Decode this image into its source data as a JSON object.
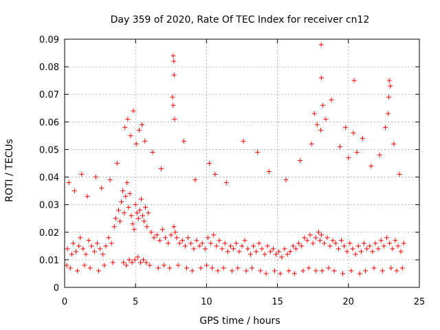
{
  "chart_data": {
    "type": "scatter",
    "title": "Day 359 of 2020, Rate Of TEC Index for receiver cn12",
    "xlabel": "GPS time / hours",
    "ylabel": "ROTI / TECUs",
    "xlim": [
      0,
      25
    ],
    "ylim": [
      0,
      0.09
    ],
    "xticks": [
      "0",
      "5",
      "10",
      "15",
      "20",
      "25"
    ],
    "yticks": [
      "0",
      "0.01",
      "0.02",
      "0.03",
      "0.04",
      "0.05",
      "0.06",
      "0.07",
      "0.08",
      "0.09"
    ],
    "grid": true,
    "marker_color": "#ff0000",
    "marker": "plus",
    "series": [
      {
        "x": [
          0.2,
          0.5,
          0.6,
          0.8,
          1.0,
          1.1,
          1.3,
          1.5,
          1.7,
          1.9,
          2.1,
          2.3,
          2.5,
          2.7,
          2.9,
          3.1,
          3.3,
          3.5,
          3.6,
          3.8,
          3.9,
          4.0,
          4.1,
          4.2,
          4.3,
          4.4,
          4.5,
          4.6,
          4.7,
          4.8,
          4.9,
          5.0,
          5.1,
          5.2,
          5.3,
          5.4,
          5.5,
          5.6,
          5.7,
          5.8,
          5.9,
          6.1,
          6.3,
          6.5,
          6.7,
          6.9,
          7.1,
          7.3,
          7.5,
          7.7,
          7.8,
          7.9,
          8.1,
          8.3,
          8.5,
          8.7,
          8.9,
          9.1,
          9.3,
          9.5,
          9.7,
          9.9,
          10.1,
          10.3,
          10.5,
          10.7,
          10.9,
          11.1,
          11.3,
          11.5,
          11.7,
          11.9,
          12.1,
          12.3,
          12.5,
          12.7,
          12.9,
          13.1,
          13.3,
          13.5,
          13.7,
          13.9,
          14.1,
          14.3,
          14.5,
          14.7,
          14.9,
          15.1,
          15.3,
          15.5,
          15.7,
          15.9,
          16.1,
          16.3,
          16.5,
          16.7,
          16.9,
          17.1,
          17.3,
          17.5,
          17.7,
          17.9,
          18.0,
          18.1,
          18.3,
          18.5,
          18.7,
          18.9,
          19.1,
          19.3,
          19.5,
          19.7,
          19.9,
          20.1,
          20.3,
          20.5,
          20.7,
          20.9,
          21.1,
          21.3,
          21.5,
          21.7,
          21.9,
          22.1,
          22.3,
          22.5,
          22.7,
          22.9,
          23.1,
          23.3,
          23.5,
          23.7,
          23.9,
          0.3,
          0.7,
          1.2,
          1.6,
          2.2,
          2.6,
          3.2,
          3.7,
          4.25,
          4.45,
          4.65,
          4.85,
          5.05,
          5.25,
          5.45,
          5.65,
          6.2,
          6.8,
          7.6,
          7.65,
          7.75,
          8.4,
          9.2,
          10.2,
          10.6,
          11.4,
          12.6,
          13.6,
          14.4,
          15.6,
          16.6,
          17.4,
          17.6,
          17.8,
          18.05,
          18.2,
          18.4,
          18.8,
          19.4,
          19.8,
          20.0,
          20.35,
          20.6,
          21.0,
          21.6,
          22.2,
          22.6,
          22.8,
          22.85,
          22.95,
          23.2,
          23.6,
          0.15,
          0.4,
          0.9,
          1.4,
          1.8,
          2.4,
          2.8,
          3.4,
          4.15,
          4.35,
          4.55,
          4.75,
          4.95,
          5.15,
          5.35,
          5.55,
          5.75,
          6.0,
          6.6,
          7.0,
          7.4,
          8.0,
          8.6,
          9.0,
          9.6,
          10.0,
          10.4,
          10.8,
          11.2,
          11.8,
          12.2,
          12.8,
          13.2,
          13.8,
          14.2,
          14.8,
          15.2,
          15.8,
          16.2,
          16.8,
          17.2,
          17.7,
          18.15,
          18.6,
          19.0,
          19.6,
          20.2,
          20.8,
          21.2,
          21.8,
          22.4,
          23.0,
          23.4,
          23.8,
          7.65,
          7.7,
          7.72,
          18.08,
          18.1,
          20.4,
          22.88
        ],
        "y": [
          0.014,
          0.012,
          0.016,
          0.013,
          0.015,
          0.018,
          0.014,
          0.012,
          0.017,
          0.015,
          0.013,
          0.016,
          0.014,
          0.012,
          0.015,
          0.018,
          0.016,
          0.022,
          0.025,
          0.028,
          0.024,
          0.031,
          0.035,
          0.027,
          0.033,
          0.038,
          0.029,
          0.034,
          0.026,
          0.023,
          0.021,
          0.03,
          0.027,
          0.025,
          0.028,
          0.032,
          0.026,
          0.024,
          0.029,
          0.022,
          0.027,
          0.02,
          0.018,
          0.019,
          0.017,
          0.021,
          0.018,
          0.016,
          0.019,
          0.022,
          0.02,
          0.018,
          0.016,
          0.017,
          0.015,
          0.018,
          0.016,
          0.014,
          0.017,
          0.015,
          0.016,
          0.014,
          0.018,
          0.016,
          0.019,
          0.015,
          0.017,
          0.014,
          0.016,
          0.013,
          0.015,
          0.014,
          0.016,
          0.013,
          0.015,
          0.017,
          0.014,
          0.012,
          0.015,
          0.013,
          0.016,
          0.014,
          0.012,
          0.015,
          0.013,
          0.014,
          0.012,
          0.013,
          0.011,
          0.014,
          0.012,
          0.013,
          0.015,
          0.014,
          0.016,
          0.015,
          0.018,
          0.017,
          0.019,
          0.016,
          0.018,
          0.02,
          0.017,
          0.019,
          0.016,
          0.018,
          0.015,
          0.017,
          0.016,
          0.014,
          0.017,
          0.015,
          0.013,
          0.016,
          0.014,
          0.012,
          0.015,
          0.013,
          0.016,
          0.014,
          0.015,
          0.013,
          0.016,
          0.014,
          0.017,
          0.015,
          0.018,
          0.016,
          0.014,
          0.017,
          0.015,
          0.013,
          0.016,
          0.038,
          0.035,
          0.041,
          0.033,
          0.04,
          0.036,
          0.039,
          0.045,
          0.058,
          0.061,
          0.055,
          0.064,
          0.052,
          0.057,
          0.059,
          0.053,
          0.049,
          0.043,
          0.069,
          0.066,
          0.061,
          0.053,
          0.039,
          0.045,
          0.041,
          0.038,
          0.053,
          0.049,
          0.042,
          0.039,
          0.046,
          0.052,
          0.063,
          0.059,
          0.057,
          0.066,
          0.061,
          0.068,
          0.051,
          0.058,
          0.047,
          0.056,
          0.049,
          0.054,
          0.044,
          0.048,
          0.058,
          0.063,
          0.069,
          0.073,
          0.052,
          0.041,
          0.008,
          0.007,
          0.006,
          0.008,
          0.007,
          0.006,
          0.008,
          0.009,
          0.009,
          0.008,
          0.01,
          0.009,
          0.01,
          0.011,
          0.009,
          0.01,
          0.009,
          0.008,
          0.007,
          0.008,
          0.007,
          0.008,
          0.007,
          0.006,
          0.007,
          0.008,
          0.007,
          0.006,
          0.007,
          0.006,
          0.007,
          0.006,
          0.007,
          0.006,
          0.005,
          0.006,
          0.005,
          0.006,
          0.005,
          0.006,
          0.007,
          0.006,
          0.006,
          0.007,
          0.006,
          0.005,
          0.006,
          0.005,
          0.006,
          0.007,
          0.006,
          0.007,
          0.006,
          0.007,
          0.084,
          0.082,
          0.077,
          0.088,
          0.076,
          0.075,
          0.075
        ]
      }
    ]
  }
}
